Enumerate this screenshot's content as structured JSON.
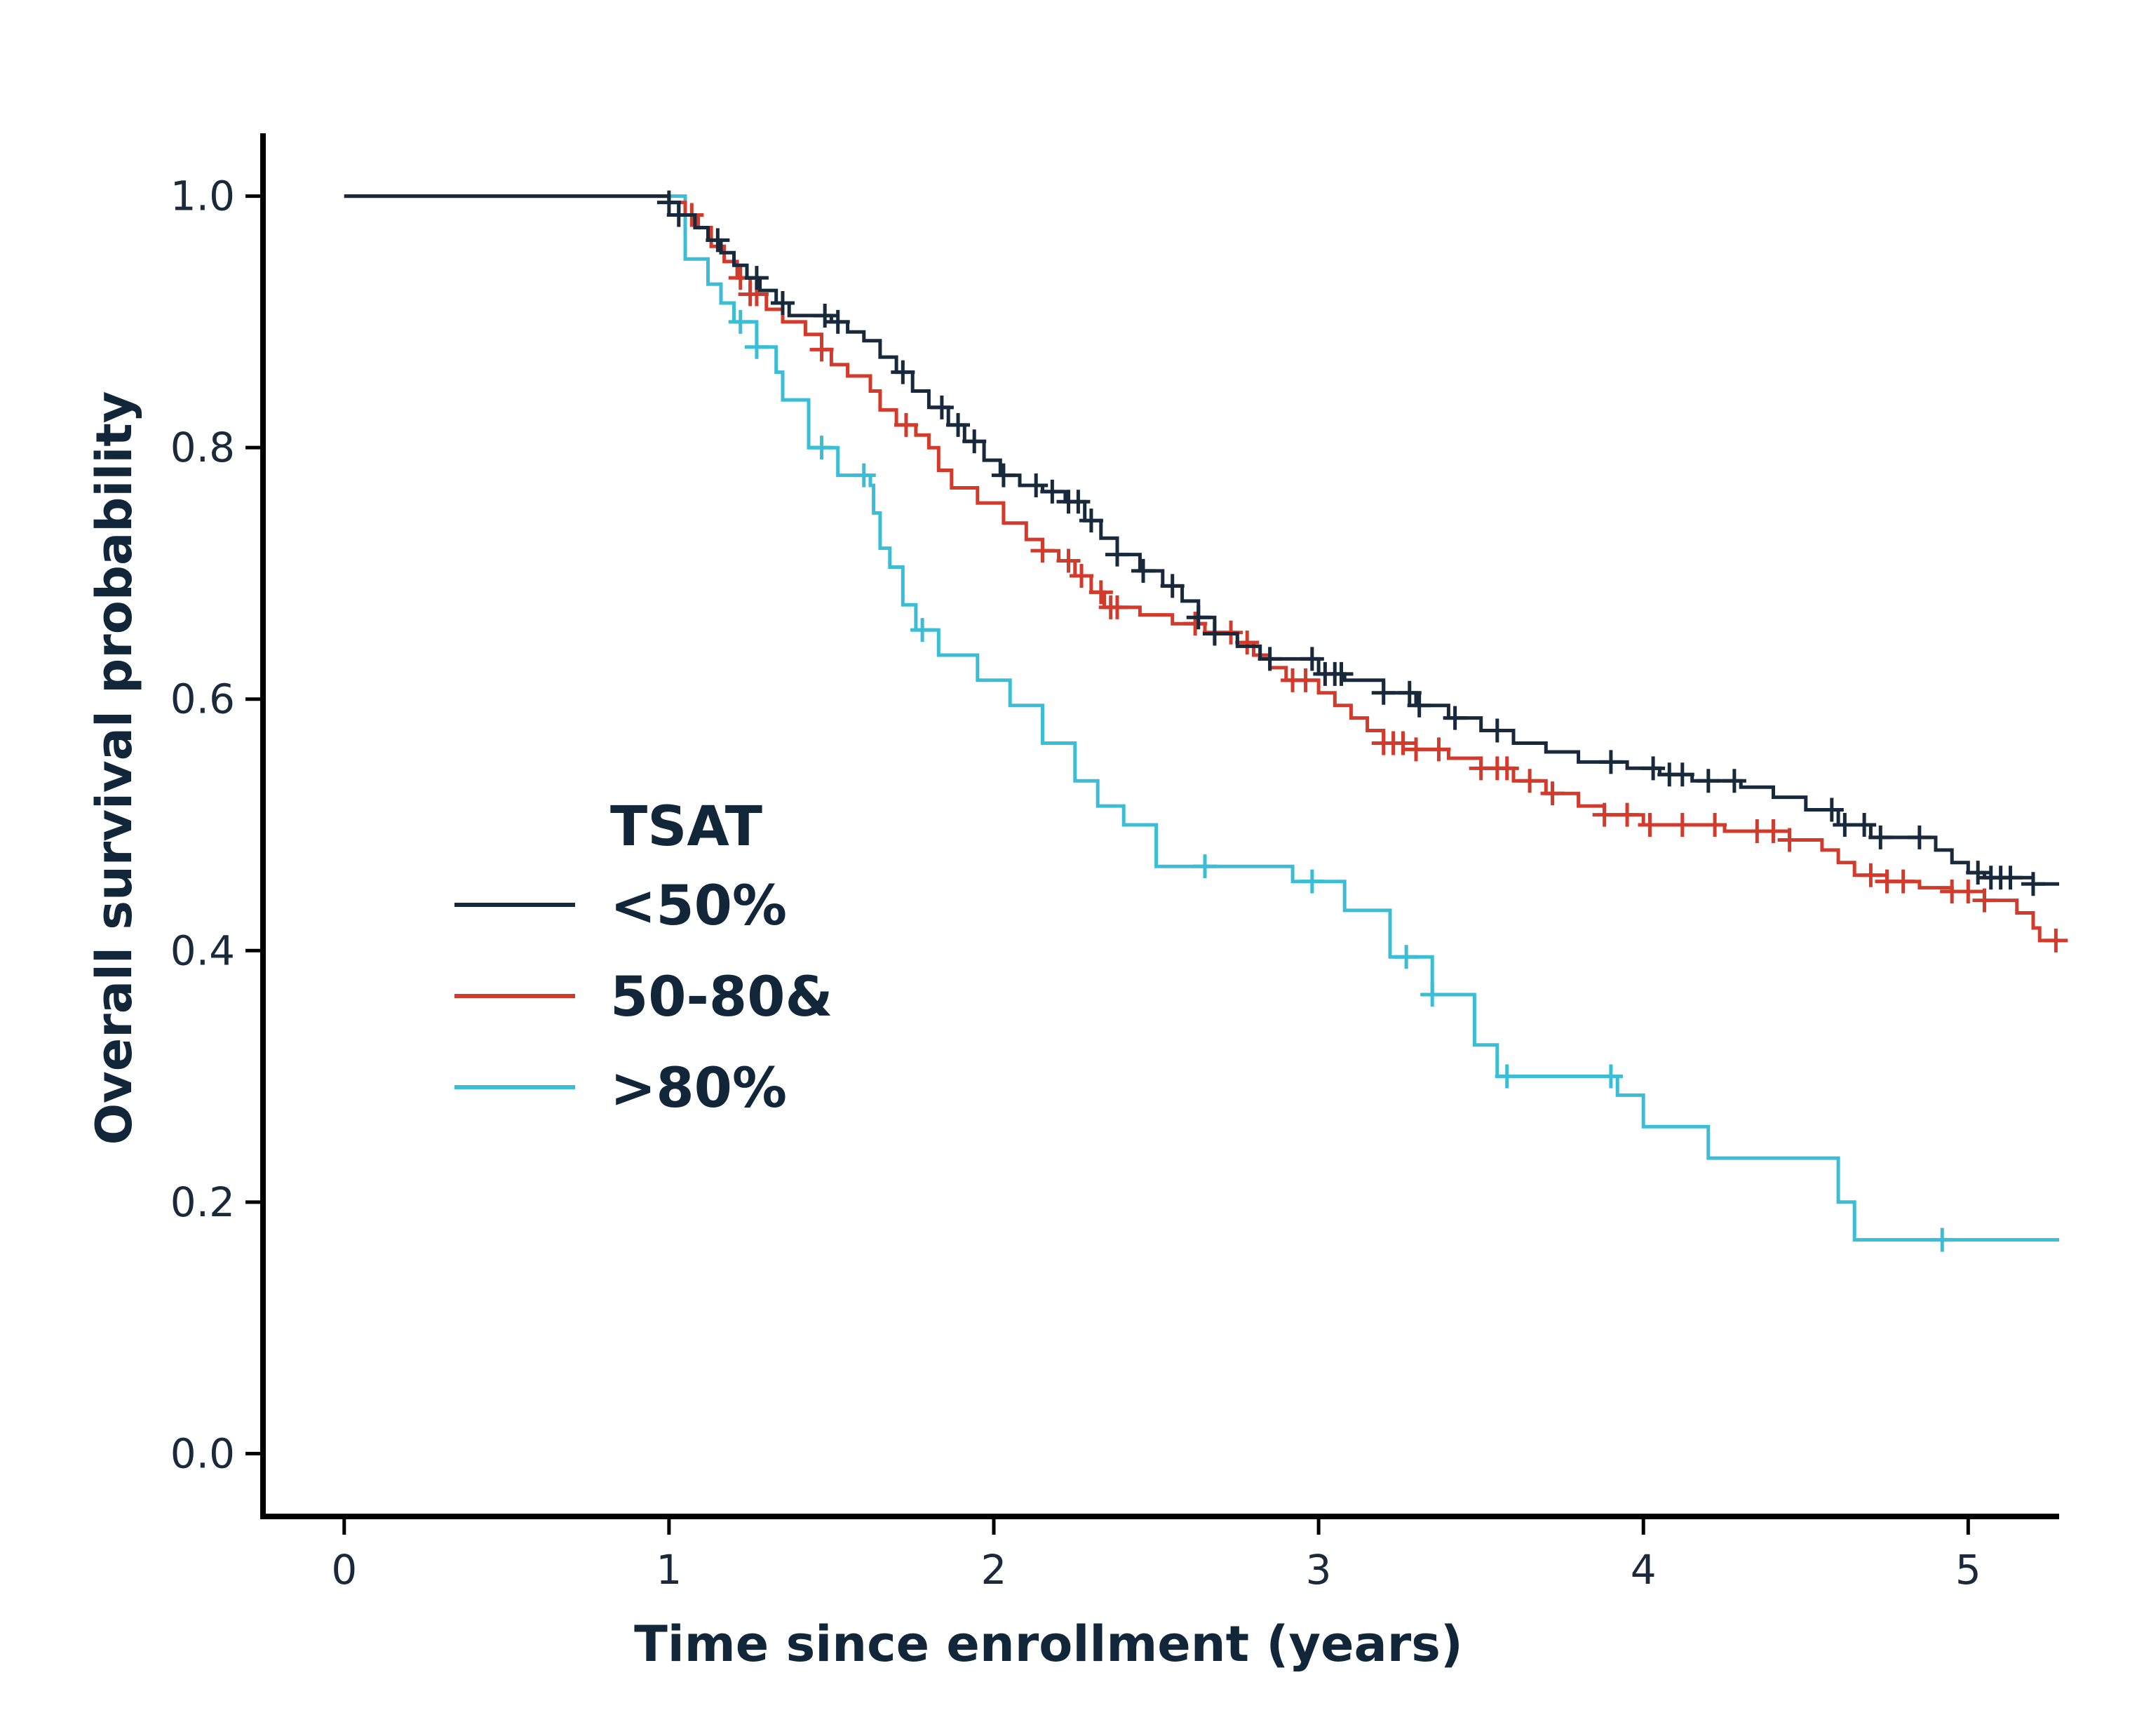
{
  "chart_data": {
    "type": "line",
    "xlabel": "Time since enrollment (years)",
    "ylabel": "Overall survival probability",
    "xlim": [
      -0.25,
      5.28
    ],
    "ylim": [
      -0.05,
      1.05
    ],
    "x_ticks": [
      0,
      1,
      2,
      3,
      4,
      5
    ],
    "x_tick_labels": [
      "0",
      "1",
      "2",
      "3",
      "4",
      "5"
    ],
    "y_ticks": [
      0.0,
      0.2,
      0.4,
      0.6,
      0.8,
      1.0
    ],
    "y_tick_labels": [
      "0.0",
      "0.2",
      "0.4",
      "0.6",
      "0.8",
      "1.0"
    ],
    "grid": false,
    "legend": {
      "title": "TSAT",
      "placement": "center-left"
    },
    "series": [
      {
        "name": "<50%",
        "color": "#17293b",
        "steps": [
          [
            0,
            1.0
          ],
          [
            1.0,
            0.995
          ],
          [
            1.03,
            0.985
          ],
          [
            1.08,
            0.975
          ],
          [
            1.12,
            0.965
          ],
          [
            1.16,
            0.955
          ],
          [
            1.2,
            0.945
          ],
          [
            1.24,
            0.935
          ],
          [
            1.28,
            0.925
          ],
          [
            1.33,
            0.915
          ],
          [
            1.37,
            0.905
          ],
          [
            1.5,
            0.9
          ],
          [
            1.55,
            0.892
          ],
          [
            1.6,
            0.885
          ],
          [
            1.65,
            0.872
          ],
          [
            1.7,
            0.86
          ],
          [
            1.75,
            0.845
          ],
          [
            1.8,
            0.832
          ],
          [
            1.86,
            0.818
          ],
          [
            1.91,
            0.805
          ],
          [
            1.97,
            0.79
          ],
          [
            2.02,
            0.778
          ],
          [
            2.08,
            0.77
          ],
          [
            2.15,
            0.765
          ],
          [
            2.22,
            0.757
          ],
          [
            2.28,
            0.742
          ],
          [
            2.33,
            0.728
          ],
          [
            2.38,
            0.715
          ],
          [
            2.45,
            0.702
          ],
          [
            2.52,
            0.69
          ],
          [
            2.58,
            0.678
          ],
          [
            2.63,
            0.665
          ],
          [
            2.68,
            0.652
          ],
          [
            2.75,
            0.642
          ],
          [
            2.82,
            0.632
          ],
          [
            3.0,
            0.62
          ],
          [
            3.08,
            0.615
          ],
          [
            3.2,
            0.605
          ],
          [
            3.3,
            0.595
          ],
          [
            3.4,
            0.585
          ],
          [
            3.5,
            0.575
          ],
          [
            3.6,
            0.565
          ],
          [
            3.7,
            0.558
          ],
          [
            3.8,
            0.55
          ],
          [
            3.95,
            0.545
          ],
          [
            4.05,
            0.54
          ],
          [
            4.15,
            0.535
          ],
          [
            4.3,
            0.53
          ],
          [
            4.4,
            0.522
          ],
          [
            4.5,
            0.512
          ],
          [
            4.6,
            0.5
          ],
          [
            4.7,
            0.49
          ],
          [
            4.9,
            0.48
          ],
          [
            4.95,
            0.47
          ],
          [
            5.0,
            0.462
          ],
          [
            5.05,
            0.458
          ],
          [
            5.2,
            0.453
          ],
          [
            5.28,
            0.453
          ]
        ],
        "censor_x": [
          1.0,
          1.03,
          1.15,
          1.27,
          1.35,
          1.48,
          1.52,
          1.72,
          1.84,
          1.89,
          1.94,
          2.03,
          2.13,
          2.18,
          2.23,
          2.26,
          2.3,
          2.38,
          2.46,
          2.55,
          2.63,
          2.68,
          2.85,
          2.98,
          3.02,
          3.05,
          3.07,
          3.2,
          3.28,
          3.31,
          3.42,
          3.55,
          3.9,
          4.03,
          4.08,
          4.12,
          4.2,
          4.28,
          4.58,
          4.62,
          4.68,
          4.73,
          4.85,
          5.03,
          5.07,
          5.1,
          5.13,
          5.2
        ]
      },
      {
        "name": "50-80&",
        "color": "#d23a2c",
        "steps": [
          [
            0,
            1.0
          ],
          [
            1.0,
            0.995
          ],
          [
            1.05,
            0.985
          ],
          [
            1.09,
            0.975
          ],
          [
            1.13,
            0.96
          ],
          [
            1.17,
            0.948
          ],
          [
            1.21,
            0.935
          ],
          [
            1.25,
            0.922
          ],
          [
            1.3,
            0.91
          ],
          [
            1.35,
            0.9
          ],
          [
            1.42,
            0.89
          ],
          [
            1.47,
            0.878
          ],
          [
            1.5,
            0.866
          ],
          [
            1.55,
            0.857
          ],
          [
            1.62,
            0.845
          ],
          [
            1.65,
            0.83
          ],
          [
            1.7,
            0.818
          ],
          [
            1.76,
            0.81
          ],
          [
            1.8,
            0.8
          ],
          [
            1.83,
            0.782
          ],
          [
            1.87,
            0.768
          ],
          [
            1.95,
            0.756
          ],
          [
            2.03,
            0.74
          ],
          [
            2.1,
            0.727
          ],
          [
            2.15,
            0.718
          ],
          [
            2.2,
            0.71
          ],
          [
            2.25,
            0.698
          ],
          [
            2.3,
            0.685
          ],
          [
            2.34,
            0.673
          ],
          [
            2.45,
            0.667
          ],
          [
            2.55,
            0.66
          ],
          [
            2.65,
            0.653
          ],
          [
            2.75,
            0.645
          ],
          [
            2.8,
            0.635
          ],
          [
            2.85,
            0.625
          ],
          [
            2.9,
            0.615
          ],
          [
            3.0,
            0.605
          ],
          [
            3.05,
            0.595
          ],
          [
            3.1,
            0.585
          ],
          [
            3.15,
            0.575
          ],
          [
            3.2,
            0.565
          ],
          [
            3.3,
            0.56
          ],
          [
            3.4,
            0.553
          ],
          [
            3.5,
            0.545
          ],
          [
            3.6,
            0.535
          ],
          [
            3.7,
            0.525
          ],
          [
            3.8,
            0.515
          ],
          [
            3.88,
            0.508
          ],
          [
            4.0,
            0.5
          ],
          [
            4.25,
            0.495
          ],
          [
            4.45,
            0.488
          ],
          [
            4.55,
            0.48
          ],
          [
            4.6,
            0.47
          ],
          [
            4.65,
            0.46
          ],
          [
            4.75,
            0.455
          ],
          [
            4.85,
            0.45
          ],
          [
            4.95,
            0.447
          ],
          [
            5.05,
            0.44
          ],
          [
            5.15,
            0.43
          ],
          [
            5.2,
            0.418
          ],
          [
            5.22,
            0.408
          ],
          [
            5.28,
            0.408
          ]
        ],
        "censor_x": [
          1.07,
          1.22,
          1.25,
          1.27,
          1.47,
          1.73,
          2.15,
          2.23,
          2.27,
          2.33,
          2.36,
          2.38,
          2.62,
          2.68,
          2.73,
          2.78,
          2.92,
          2.96,
          3.2,
          3.23,
          3.26,
          3.3,
          3.37,
          3.5,
          3.55,
          3.58,
          3.65,
          3.72,
          3.88,
          3.95,
          4.02,
          4.12,
          4.22,
          4.35,
          4.4,
          4.45,
          4.7,
          4.75,
          4.8,
          4.95,
          5.0,
          5.05,
          5.27
        ]
      },
      {
        "name": ">80%",
        "color": "#3bbdd6",
        "steps": [
          [
            0,
            1.0
          ],
          [
            1.05,
            0.95
          ],
          [
            1.12,
            0.93
          ],
          [
            1.16,
            0.915
          ],
          [
            1.2,
            0.9
          ],
          [
            1.27,
            0.88
          ],
          [
            1.33,
            0.86
          ],
          [
            1.35,
            0.838
          ],
          [
            1.43,
            0.8
          ],
          [
            1.52,
            0.778
          ],
          [
            1.62,
            0.77
          ],
          [
            1.63,
            0.748
          ],
          [
            1.65,
            0.72
          ],
          [
            1.68,
            0.705
          ],
          [
            1.72,
            0.675
          ],
          [
            1.76,
            0.655
          ],
          [
            1.83,
            0.635
          ],
          [
            1.95,
            0.615
          ],
          [
            2.05,
            0.595
          ],
          [
            2.15,
            0.565
          ],
          [
            2.25,
            0.535
          ],
          [
            2.32,
            0.515
          ],
          [
            2.4,
            0.5
          ],
          [
            2.5,
            0.467
          ],
          [
            2.92,
            0.455
          ],
          [
            3.08,
            0.432
          ],
          [
            3.22,
            0.395
          ],
          [
            3.35,
            0.365
          ],
          [
            3.48,
            0.325
          ],
          [
            3.55,
            0.3
          ],
          [
            3.92,
            0.285
          ],
          [
            4.0,
            0.26
          ],
          [
            4.2,
            0.235
          ],
          [
            4.6,
            0.2
          ],
          [
            4.65,
            0.17
          ],
          [
            5.28,
            0.17
          ]
        ],
        "censor_x": [
          1.22,
          1.27,
          1.47,
          1.6,
          1.78,
          2.65,
          2.98,
          3.27,
          3.35,
          3.58,
          3.9,
          4.92
        ]
      }
    ]
  }
}
